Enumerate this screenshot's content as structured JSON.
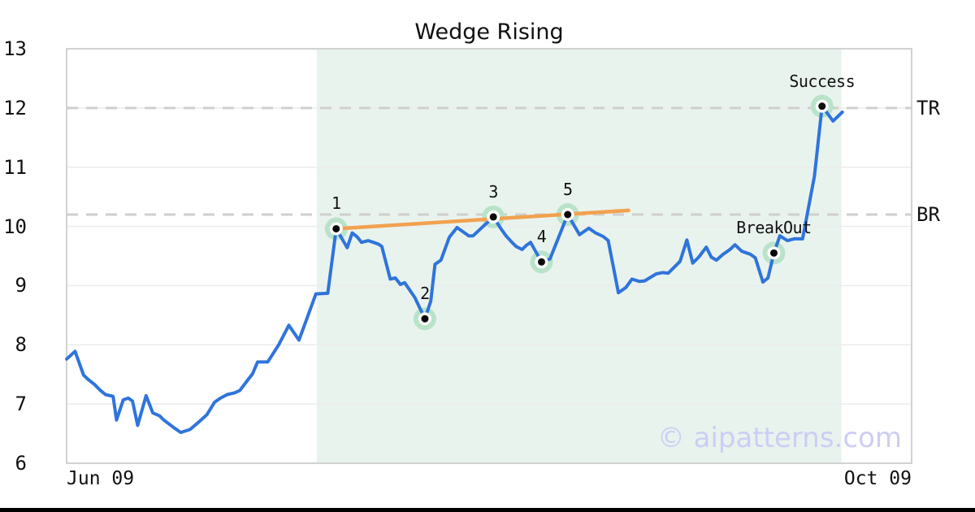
{
  "chart_data": {
    "type": "line",
    "title": "Wedge Rising",
    "x_tick_labels": [
      "Jun 09",
      "Oct 09"
    ],
    "y_ticks": [
      6,
      7,
      8,
      9,
      10,
      11,
      12,
      13
    ],
    "ylim": [
      6,
      13
    ],
    "grid": "horizontal-only",
    "watermark": "© aipatterns.com",
    "levels": [
      {
        "label": "TR",
        "value": 12.0
      },
      {
        "label": "BR",
        "value": 10.2
      }
    ],
    "pattern_zone": {
      "t_start": 0.296,
      "t_end": 0.917
    },
    "trendline": {
      "from": {
        "t": 0.319,
        "v": 9.96
      },
      "to": {
        "t": 0.665,
        "v": 10.27
      }
    },
    "markers": [
      {
        "label": "1",
        "t": 0.319,
        "v": 9.96
      },
      {
        "label": "2",
        "t": 0.424,
        "v": 8.44
      },
      {
        "label": "3",
        "t": 0.505,
        "v": 10.16
      },
      {
        "label": "4",
        "t": 0.562,
        "v": 9.4
      },
      {
        "label": "5",
        "t": 0.593,
        "v": 10.2
      },
      {
        "label": "BreakOut",
        "t": 0.837,
        "v": 9.55
      },
      {
        "label": "Success",
        "t": 0.894,
        "v": 12.03
      }
    ],
    "series": [
      {
        "name": "price",
        "points": [
          [
            0.0,
            7.76
          ],
          [
            0.01,
            7.89
          ],
          [
            0.02,
            7.49
          ],
          [
            0.025,
            7.42
          ],
          [
            0.033,
            7.33
          ],
          [
            0.04,
            7.23
          ],
          [
            0.046,
            7.16
          ],
          [
            0.055,
            7.13
          ],
          [
            0.059,
            6.73
          ],
          [
            0.067,
            7.07
          ],
          [
            0.073,
            7.1
          ],
          [
            0.078,
            7.05
          ],
          [
            0.084,
            6.64
          ],
          [
            0.094,
            7.14
          ],
          [
            0.102,
            6.85
          ],
          [
            0.11,
            6.8
          ],
          [
            0.115,
            6.73
          ],
          [
            0.127,
            6.6
          ],
          [
            0.135,
            6.52
          ],
          [
            0.146,
            6.57
          ],
          [
            0.156,
            6.69
          ],
          [
            0.166,
            6.82
          ],
          [
            0.175,
            7.03
          ],
          [
            0.182,
            7.1
          ],
          [
            0.19,
            7.16
          ],
          [
            0.199,
            7.19
          ],
          [
            0.205,
            7.23
          ],
          [
            0.213,
            7.38
          ],
          [
            0.22,
            7.51
          ],
          [
            0.226,
            7.71
          ],
          [
            0.238,
            7.71
          ],
          [
            0.251,
            8.0
          ],
          [
            0.263,
            8.33
          ],
          [
            0.275,
            8.08
          ],
          [
            0.295,
            8.86
          ],
          [
            0.309,
            8.87
          ],
          [
            0.319,
            9.96
          ],
          [
            0.332,
            9.64
          ],
          [
            0.338,
            9.89
          ],
          [
            0.344,
            9.82
          ],
          [
            0.349,
            9.73
          ],
          [
            0.357,
            9.76
          ],
          [
            0.363,
            9.73
          ],
          [
            0.369,
            9.7
          ],
          [
            0.373,
            9.66
          ],
          [
            0.383,
            9.11
          ],
          [
            0.389,
            9.13
          ],
          [
            0.395,
            9.02
          ],
          [
            0.4,
            9.05
          ],
          [
            0.412,
            8.8
          ],
          [
            0.424,
            8.44
          ],
          [
            0.431,
            8.74
          ],
          [
            0.436,
            9.36
          ],
          [
            0.443,
            9.43
          ],
          [
            0.453,
            9.82
          ],
          [
            0.462,
            9.98
          ],
          [
            0.469,
            9.91
          ],
          [
            0.476,
            9.84
          ],
          [
            0.481,
            9.84
          ],
          [
            0.505,
            10.16
          ],
          [
            0.514,
            9.96
          ],
          [
            0.52,
            9.84
          ],
          [
            0.527,
            9.73
          ],
          [
            0.532,
            9.66
          ],
          [
            0.539,
            9.61
          ],
          [
            0.544,
            9.68
          ],
          [
            0.549,
            9.73
          ],
          [
            0.562,
            9.4
          ],
          [
            0.572,
            9.45
          ],
          [
            0.593,
            10.2
          ],
          [
            0.607,
            9.86
          ],
          [
            0.618,
            9.97
          ],
          [
            0.626,
            9.89
          ],
          [
            0.635,
            9.83
          ],
          [
            0.641,
            9.76
          ],
          [
            0.653,
            8.88
          ],
          [
            0.662,
            8.97
          ],
          [
            0.669,
            9.11
          ],
          [
            0.678,
            9.07
          ],
          [
            0.684,
            9.08
          ],
          [
            0.698,
            9.2
          ],
          [
            0.705,
            9.22
          ],
          [
            0.712,
            9.21
          ],
          [
            0.719,
            9.31
          ],
          [
            0.726,
            9.41
          ],
          [
            0.734,
            9.77
          ],
          [
            0.741,
            9.38
          ],
          [
            0.748,
            9.48
          ],
          [
            0.757,
            9.65
          ],
          [
            0.763,
            9.48
          ],
          [
            0.769,
            9.43
          ],
          [
            0.777,
            9.53
          ],
          [
            0.785,
            9.61
          ],
          [
            0.791,
            9.69
          ],
          [
            0.799,
            9.58
          ],
          [
            0.809,
            9.53
          ],
          [
            0.815,
            9.47
          ],
          [
            0.824,
            9.06
          ],
          [
            0.83,
            9.13
          ],
          [
            0.837,
            9.55
          ],
          [
            0.844,
            9.84
          ],
          [
            0.853,
            9.76
          ],
          [
            0.861,
            9.79
          ],
          [
            0.871,
            9.79
          ],
          [
            0.885,
            10.85
          ],
          [
            0.894,
            12.03
          ],
          [
            0.907,
            11.78
          ],
          [
            0.918,
            11.93
          ]
        ]
      }
    ],
    "colors": {
      "line": "#2f74db",
      "trendline": "#f2a14f",
      "zone": "#e9f3ee",
      "marker_halo": "#b9e3c9",
      "marker_ring": "#ffffff",
      "marker_dot": "#0a0a0a",
      "level_dash": "#cfcfcf",
      "grid": "#ebebeb",
      "border": "#d2d2d2",
      "watermark": "#cdcdf4",
      "text": "#111111"
    }
  }
}
